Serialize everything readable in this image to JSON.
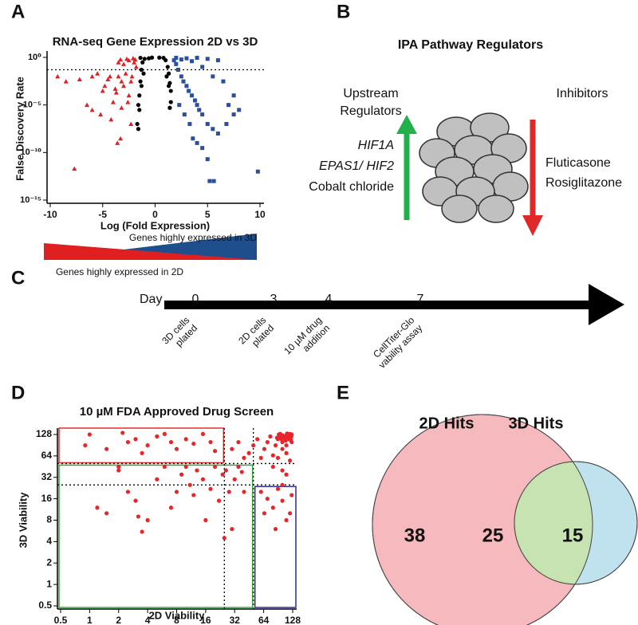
{
  "panel_labels": [
    "A",
    "B",
    "C",
    "D",
    "E"
  ],
  "chart_data": [
    {
      "type": "scatter",
      "title": "RNA-seq Gene Expression 2D vs 3D",
      "xlabel": "Log (Fold Expression)",
      "ylabel": "False Discovery Rate",
      "xlim": [
        -10,
        10
      ],
      "ylim": [
        1e-15,
        1
      ],
      "yscale": "log",
      "xticks": [
        -10,
        -5,
        0,
        5,
        10
      ],
      "yticks": [
        {
          "value": 1,
          "label": "10⁰"
        },
        {
          "value": 1e-05,
          "label": "10⁻⁵"
        },
        {
          "value": 1e-10,
          "label": "10⁻¹⁰"
        },
        {
          "value": 1e-15,
          "label": "10⁻¹⁵"
        }
      ],
      "hline": 0.05,
      "annotations": [
        {
          "text": "Genes highly expressed in 3D",
          "color": "#1f4e8c"
        },
        {
          "text": "Genes highly expressed in 2D",
          "color": "#e02020"
        }
      ],
      "series": [
        {
          "color": "#e02020",
          "marker": "triangle",
          "x": [
            -9.3,
            -8.5,
            -7.2,
            -6,
            -5.5,
            -5,
            -4.8,
            -4.5,
            -4.3,
            -4,
            -3.8,
            -3.5,
            -3.2,
            -3,
            -2.8,
            -2.5,
            -2.3,
            -2.2,
            -2,
            -1.8,
            -2.5,
            -3,
            -3.5,
            -6.5,
            -6,
            -5.2,
            -4.2,
            -3.2,
            -2.6,
            -3.6,
            -3.3,
            -7.7,
            -2.3,
            -3.7,
            -1.9,
            -2.1,
            -2.7,
            -3.3
          ],
          "values": [
            0.01,
            0.003,
            0.005,
            0.01,
            0.02,
            0.0003,
            0.001,
            0.005,
            0.01,
            2e-05,
            0.0005,
            0.01,
            0.003,
            0.001,
            0.02,
            0.0001,
            0.003,
            0.01,
            0.3,
            0.1,
            0.5,
            0.2,
            0.3,
            1e-05,
            3e-06,
            1e-06,
            3e-07,
            5e-06,
            2e-05,
            1e-09,
            3e-09,
            2e-12,
            1e-07,
            0.0002,
            0.6,
            0.8,
            0.7,
            0.6
          ]
        },
        {
          "color": "#2a4fa0",
          "marker": "square",
          "x": [
            1.8,
            2,
            2.2,
            2.5,
            2.7,
            3,
            3.2,
            3.5,
            3.8,
            4,
            4.2,
            4.5,
            5,
            5.5,
            6,
            2.3,
            2.8,
            3.3,
            3.6,
            4,
            4.5,
            5,
            5.2,
            5.6,
            9.8,
            7,
            8,
            7.5,
            6.5,
            5.5,
            4.5,
            3.5,
            2.5,
            6,
            5,
            3,
            4,
            2,
            6.8,
            7.5
          ],
          "values": [
            0.5,
            0.2,
            0.05,
            0.01,
            0.003,
            0.001,
            0.0003,
            0.0001,
            3e-05,
            1e-05,
            3e-06,
            1e-06,
            1e-07,
            3e-08,
            1e-08,
            1e-05,
            1e-06,
            1e-07,
            3e-09,
            1e-09,
            3e-10,
            2e-11,
            1e-13,
            1e-13,
            1e-12,
            1e-05,
            3e-06,
            0.0001,
            0.003,
            0.01,
            0.1,
            0.4,
            0.6,
            0.5,
            0.7,
            0.8,
            0.9,
            0.9,
            1e-07,
            1e-06
          ]
        },
        {
          "color": "#000000",
          "marker": "circle",
          "x": [
            -1.4,
            -1,
            -0.6,
            -1.2,
            -1.3,
            -1.4,
            -1.5,
            -1.6,
            -1.5,
            -1.7,
            -1.6,
            0.8,
            1,
            1.2,
            1.3,
            1.4,
            1.5,
            1.5,
            1.4,
            -0.3,
            0.4,
            -1.1,
            1.1,
            -1.3,
            1.3
          ],
          "values": [
            0.9,
            0.7,
            0.8,
            0.3,
            0.05,
            0.003,
            0.0001,
            1e-05,
            3e-06,
            1e-07,
            3e-08,
            0.9,
            0.5,
            0.1,
            0.02,
            0.002,
            0.0003,
            2e-05,
            5e-06,
            0.95,
            0.95,
            0.02,
            0.01,
            0.001,
            0.001
          ]
        }
      ]
    },
    {
      "type": "scatter",
      "title": "10 µM FDA Approved Drug Screen",
      "xlabel": "2D Viability",
      "ylabel": "3D Viability",
      "xlim": [
        0.5,
        128
      ],
      "ylim": [
        0.5,
        128
      ],
      "xscale": "log",
      "yscale": "log",
      "xticks": [
        0.5,
        1,
        2,
        4,
        8,
        16,
        32,
        64,
        128
      ],
      "yticks": [
        0.5,
        1,
        2,
        4,
        8,
        16,
        32,
        64,
        128
      ],
      "thresholds": {
        "x": [
          25,
          50
        ],
        "y": [
          25,
          50
        ]
      },
      "regions": [
        {
          "color": "#e03030",
          "x": [
            null,
            25
          ],
          "y": [
            50,
            null
          ]
        },
        {
          "color": "#3aa040",
          "x": [
            null,
            50
          ],
          "y": [
            null,
            50
          ]
        },
        {
          "color": "#2a2a90",
          "x": [
            50,
            null
          ],
          "y": [
            null,
            25
          ]
        }
      ],
      "series": [
        {
          "color": "#e8262a",
          "marker": "circle",
          "x": [
            1,
            2.2,
            2.5,
            3,
            4,
            5,
            7,
            8,
            12,
            15,
            20,
            10,
            0.9,
            6,
            18,
            3.5,
            1.5,
            1.2,
            1.5,
            2,
            2.5,
            3,
            3.2,
            3.5,
            4,
            5,
            6,
            7,
            8,
            9,
            10,
            11,
            12,
            13,
            15,
            16,
            18,
            20,
            22,
            24,
            26,
            28,
            30,
            32,
            25,
            35,
            38,
            40,
            2,
            30,
            35,
            40,
            45,
            50,
            55,
            60,
            65,
            70,
            75,
            80,
            85,
            90,
            95,
            100,
            105,
            110,
            115,
            120,
            125,
            100,
            110,
            90,
            120,
            80,
            100,
            110,
            60,
            70,
            80,
            90,
            100,
            110,
            120,
            125,
            85,
            100,
            65,
            95,
            100,
            105,
            110,
            115,
            120,
            125,
            124,
            98,
            108,
            118,
            122,
            88,
            92,
            112,
            122
          ],
          "values": [
            128,
            135,
            100,
            110,
            90,
            120,
            100,
            80,
            95,
            130,
            75,
            110,
            90,
            130,
            100,
            70,
            80,
            12,
            10,
            40,
            20,
            15,
            9,
            5.5,
            8,
            30,
            45,
            12,
            20,
            35,
            45,
            25,
            18,
            40,
            30,
            8,
            22,
            45,
            15,
            35,
            40,
            20,
            6,
            30,
            4.5,
            45,
            38,
            20,
            45,
            80,
            100,
            60,
            70,
            90,
            110,
            60,
            80,
            100,
            120,
            65,
            90,
            110,
            130,
            100,
            120,
            90,
            110,
            130,
            100,
            80,
            70,
            60,
            55,
            45,
            40,
            35,
            20,
            16,
            12,
            22,
            15,
            8,
            10,
            18,
            6,
            25,
            10,
            120,
            125,
            115,
            125,
            118,
            122,
            128,
            120,
            110,
            105,
            112,
            108,
            115,
            128,
            132,
            108
          ]
        }
      ]
    },
    {
      "type": "venn",
      "sets": [
        {
          "name": "2D Hits",
          "color": "#e8304a"
        },
        {
          "name": "3D Hits",
          "color": "#2c2c8c"
        }
      ],
      "values": [
        38,
        25,
        15
      ]
    }
  ],
  "pathway": {
    "title": "IPA Pathway Regulators",
    "upstream_heading": [
      "Upstream",
      "Regulators"
    ],
    "inhibitors_heading": "Inhibitors",
    "upstream": [
      "HIF1A",
      "EPAS1/ HIF2",
      "Cobalt chloride"
    ],
    "inhibitors": [
      "Fluticasone",
      "Rosiglitazone"
    ]
  },
  "timeline": {
    "axis_label": "Day",
    "days": [
      0,
      3,
      4,
      7
    ],
    "events": [
      [
        "3D cells",
        "plated"
      ],
      [
        "2D cells",
        "plated"
      ],
      [
        "10 µM drug",
        "addition"
      ],
      [
        "CellTiter-Glo",
        "vability assay"
      ]
    ]
  }
}
